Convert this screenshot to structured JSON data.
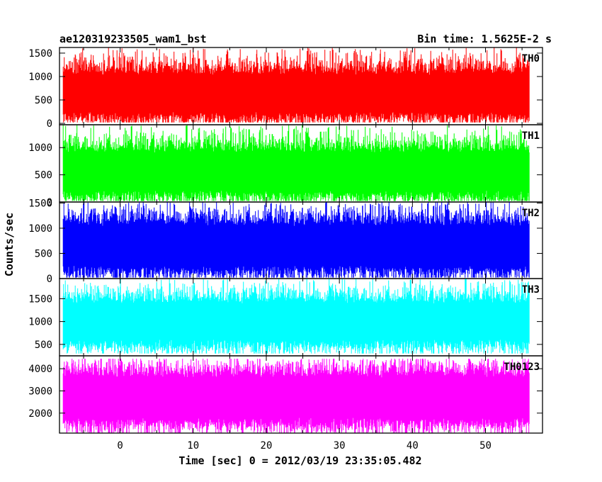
{
  "header": {
    "title": "ae120319233505_wam1_bst",
    "bin_time": "Bin time: 1.5625E-2 s"
  },
  "chart_data": {
    "type": "line",
    "style": "dense stepped light curve",
    "xlabel": "Time [sec] 0 = 2012/03/19 23:35:05.482",
    "ylabel": "Counts/sec",
    "xlim": [
      -8.3,
      57.8
    ],
    "x_range_data": [
      -7.8,
      56.0
    ],
    "x_ticks": [
      0,
      10,
      20,
      30,
      40,
      50
    ],
    "x_tick_labels": [
      "0",
      "10",
      "20",
      "30",
      "40",
      "50"
    ],
    "panels": [
      {
        "name": "TH0",
        "color": "#ff0000",
        "ylim": [
          -30,
          1620
        ],
        "y_ticks": [
          0,
          500,
          1000,
          1500
        ],
        "y_tick_labels": [
          "0",
          "500",
          "1000",
          "1500"
        ],
        "typical_range": [
          150,
          1200
        ],
        "mean": 640,
        "min": 20,
        "max": 1620
      },
      {
        "name": "TH1",
        "color": "#00ff00",
        "ylim": [
          0,
          1420
        ],
        "y_ticks": [
          0,
          500,
          1000
        ],
        "y_tick_labels": [
          "0",
          "500",
          "1000"
        ],
        "typical_range": [
          120,
          1050
        ],
        "mean": 560,
        "min": 20,
        "max": 1420
      },
      {
        "name": "TH2",
        "color": "#0000ff",
        "ylim": [
          0,
          1520
        ],
        "y_ticks": [
          0,
          500,
          1000,
          1500
        ],
        "y_tick_labels": [
          "0",
          "500",
          "1000",
          "1500"
        ],
        "typical_range": [
          150,
          1200
        ],
        "mean": 650,
        "min": 20,
        "max": 1520
      },
      {
        "name": "TH3",
        "color": "#00ffff",
        "ylim": [
          250,
          1940
        ],
        "y_ticks": [
          500,
          1000,
          1500
        ],
        "y_tick_labels": [
          "500",
          "1000",
          "1500"
        ],
        "typical_range": [
          500,
          1550
        ],
        "mean": 1000,
        "min": 300,
        "max": 1940
      },
      {
        "name": "TH0123",
        "color": "#ff00ff",
        "ylim": [
          1100,
          4580
        ],
        "y_ticks": [
          2000,
          3000,
          4000
        ],
        "y_tick_labels": [
          "2000",
          "3000",
          "4000"
        ],
        "typical_range": [
          1500,
          3900
        ],
        "mean": 2700,
        "min": 1100,
        "max": 4450
      }
    ]
  }
}
